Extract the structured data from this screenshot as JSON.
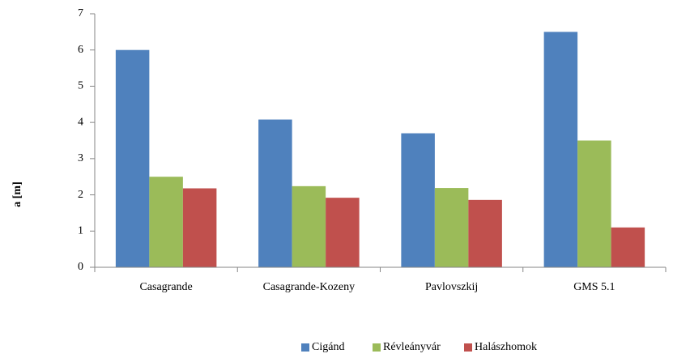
{
  "chart_data": {
    "type": "bar",
    "y_label": "a [m]",
    "categories": [
      "Casagrande",
      "Casagrande-Kozeny",
      "Pavlovszkij",
      "GMS 5.1"
    ],
    "series": [
      {
        "name": "Cigánd",
        "color": "#4f81bd",
        "values": [
          6.0,
          4.08,
          3.7,
          6.5
        ]
      },
      {
        "name": "Révleányvár",
        "color": "#9bbb59",
        "values": [
          2.5,
          2.24,
          2.19,
          3.5
        ]
      },
      {
        "name": "Halászhomok",
        "color": "#c0504d",
        "values": [
          2.18,
          1.92,
          1.86,
          1.1
        ]
      }
    ],
    "ylim": [
      0,
      7
    ],
    "yticks": [
      0,
      1,
      2,
      3,
      4,
      5,
      6,
      7
    ],
    "grid": false,
    "legend": "bottom"
  }
}
